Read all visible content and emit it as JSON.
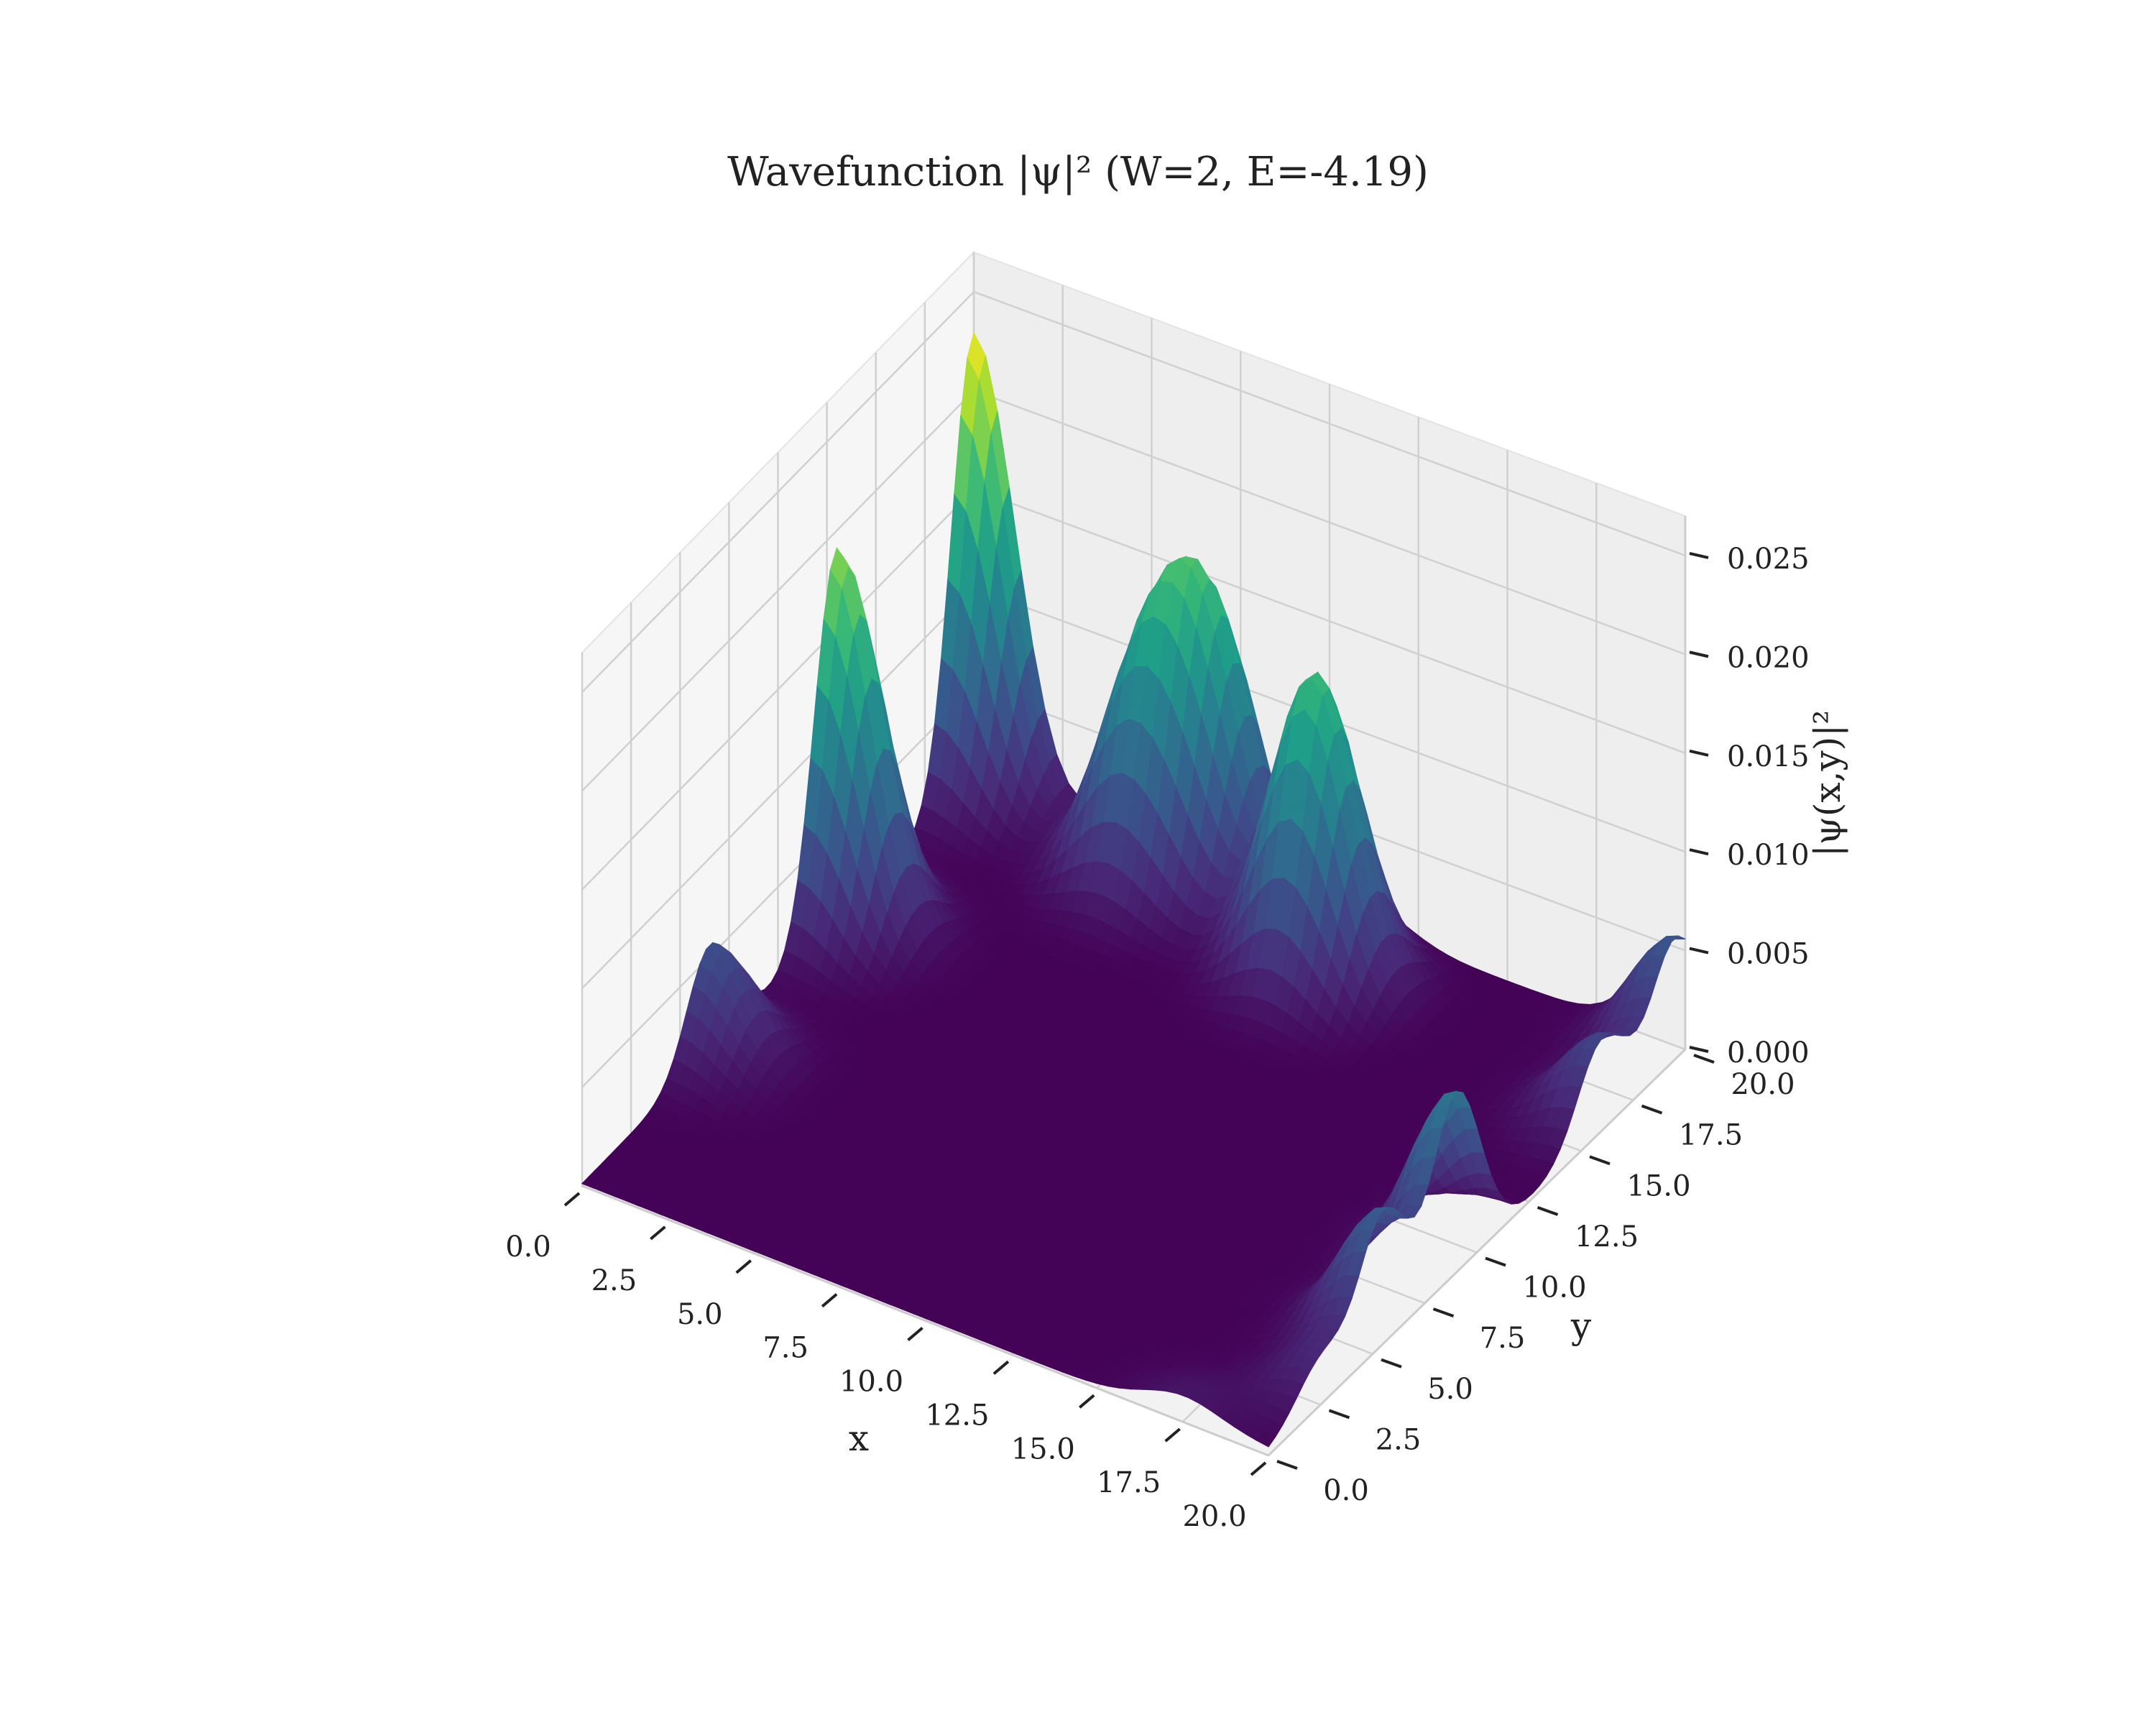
{
  "chart_data": {
    "type": "surface",
    "title": "Wavefunction |ψ|² (W=2, E=-4.19)",
    "xlabel": "x",
    "ylabel": "y",
    "zlabel": "|ψ(x,y)|²",
    "xlim": [
      0,
      20
    ],
    "ylim": [
      0,
      20
    ],
    "zlim": [
      0,
      0.027
    ],
    "xticks": [
      "0.0",
      "2.5",
      "5.0",
      "7.5",
      "10.0",
      "12.5",
      "15.0",
      "17.5",
      "20.0"
    ],
    "yticks": [
      "0.0",
      "2.5",
      "5.0",
      "7.5",
      "10.0",
      "12.5",
      "15.0",
      "17.5",
      "20.0"
    ],
    "zticks": [
      "0.000",
      "0.005",
      "0.010",
      "0.015",
      "0.020",
      "0.025"
    ],
    "colormap": "viridis",
    "grid": true,
    "peaks": [
      {
        "x": 0.0,
        "y": 20.0,
        "z": 0.0228
      },
      {
        "x": 0.0,
        "y": 13.0,
        "z": 0.019
      },
      {
        "x": 0.0,
        "y": 6.5,
        "z": 0.0055
      },
      {
        "x": 7.0,
        "y": 19.5,
        "z": 0.0125
      },
      {
        "x": 5.5,
        "y": 18.5,
        "z": 0.01
      },
      {
        "x": 11.0,
        "y": 17.5,
        "z": 0.0155
      },
      {
        "x": 20.0,
        "y": 9.0,
        "z": 0.009
      },
      {
        "x": 20.0,
        "y": 5.5,
        "z": 0.0065
      },
      {
        "x": 20.0,
        "y": 2.5,
        "z": 0.0022
      },
      {
        "x": 20.0,
        "y": 19.5,
        "z": 0.006
      },
      {
        "x": 20.0,
        "y": 16.0,
        "z": 0.0045
      },
      {
        "x": 17.5,
        "y": 0.0,
        "z": 0.0012
      }
    ]
  }
}
